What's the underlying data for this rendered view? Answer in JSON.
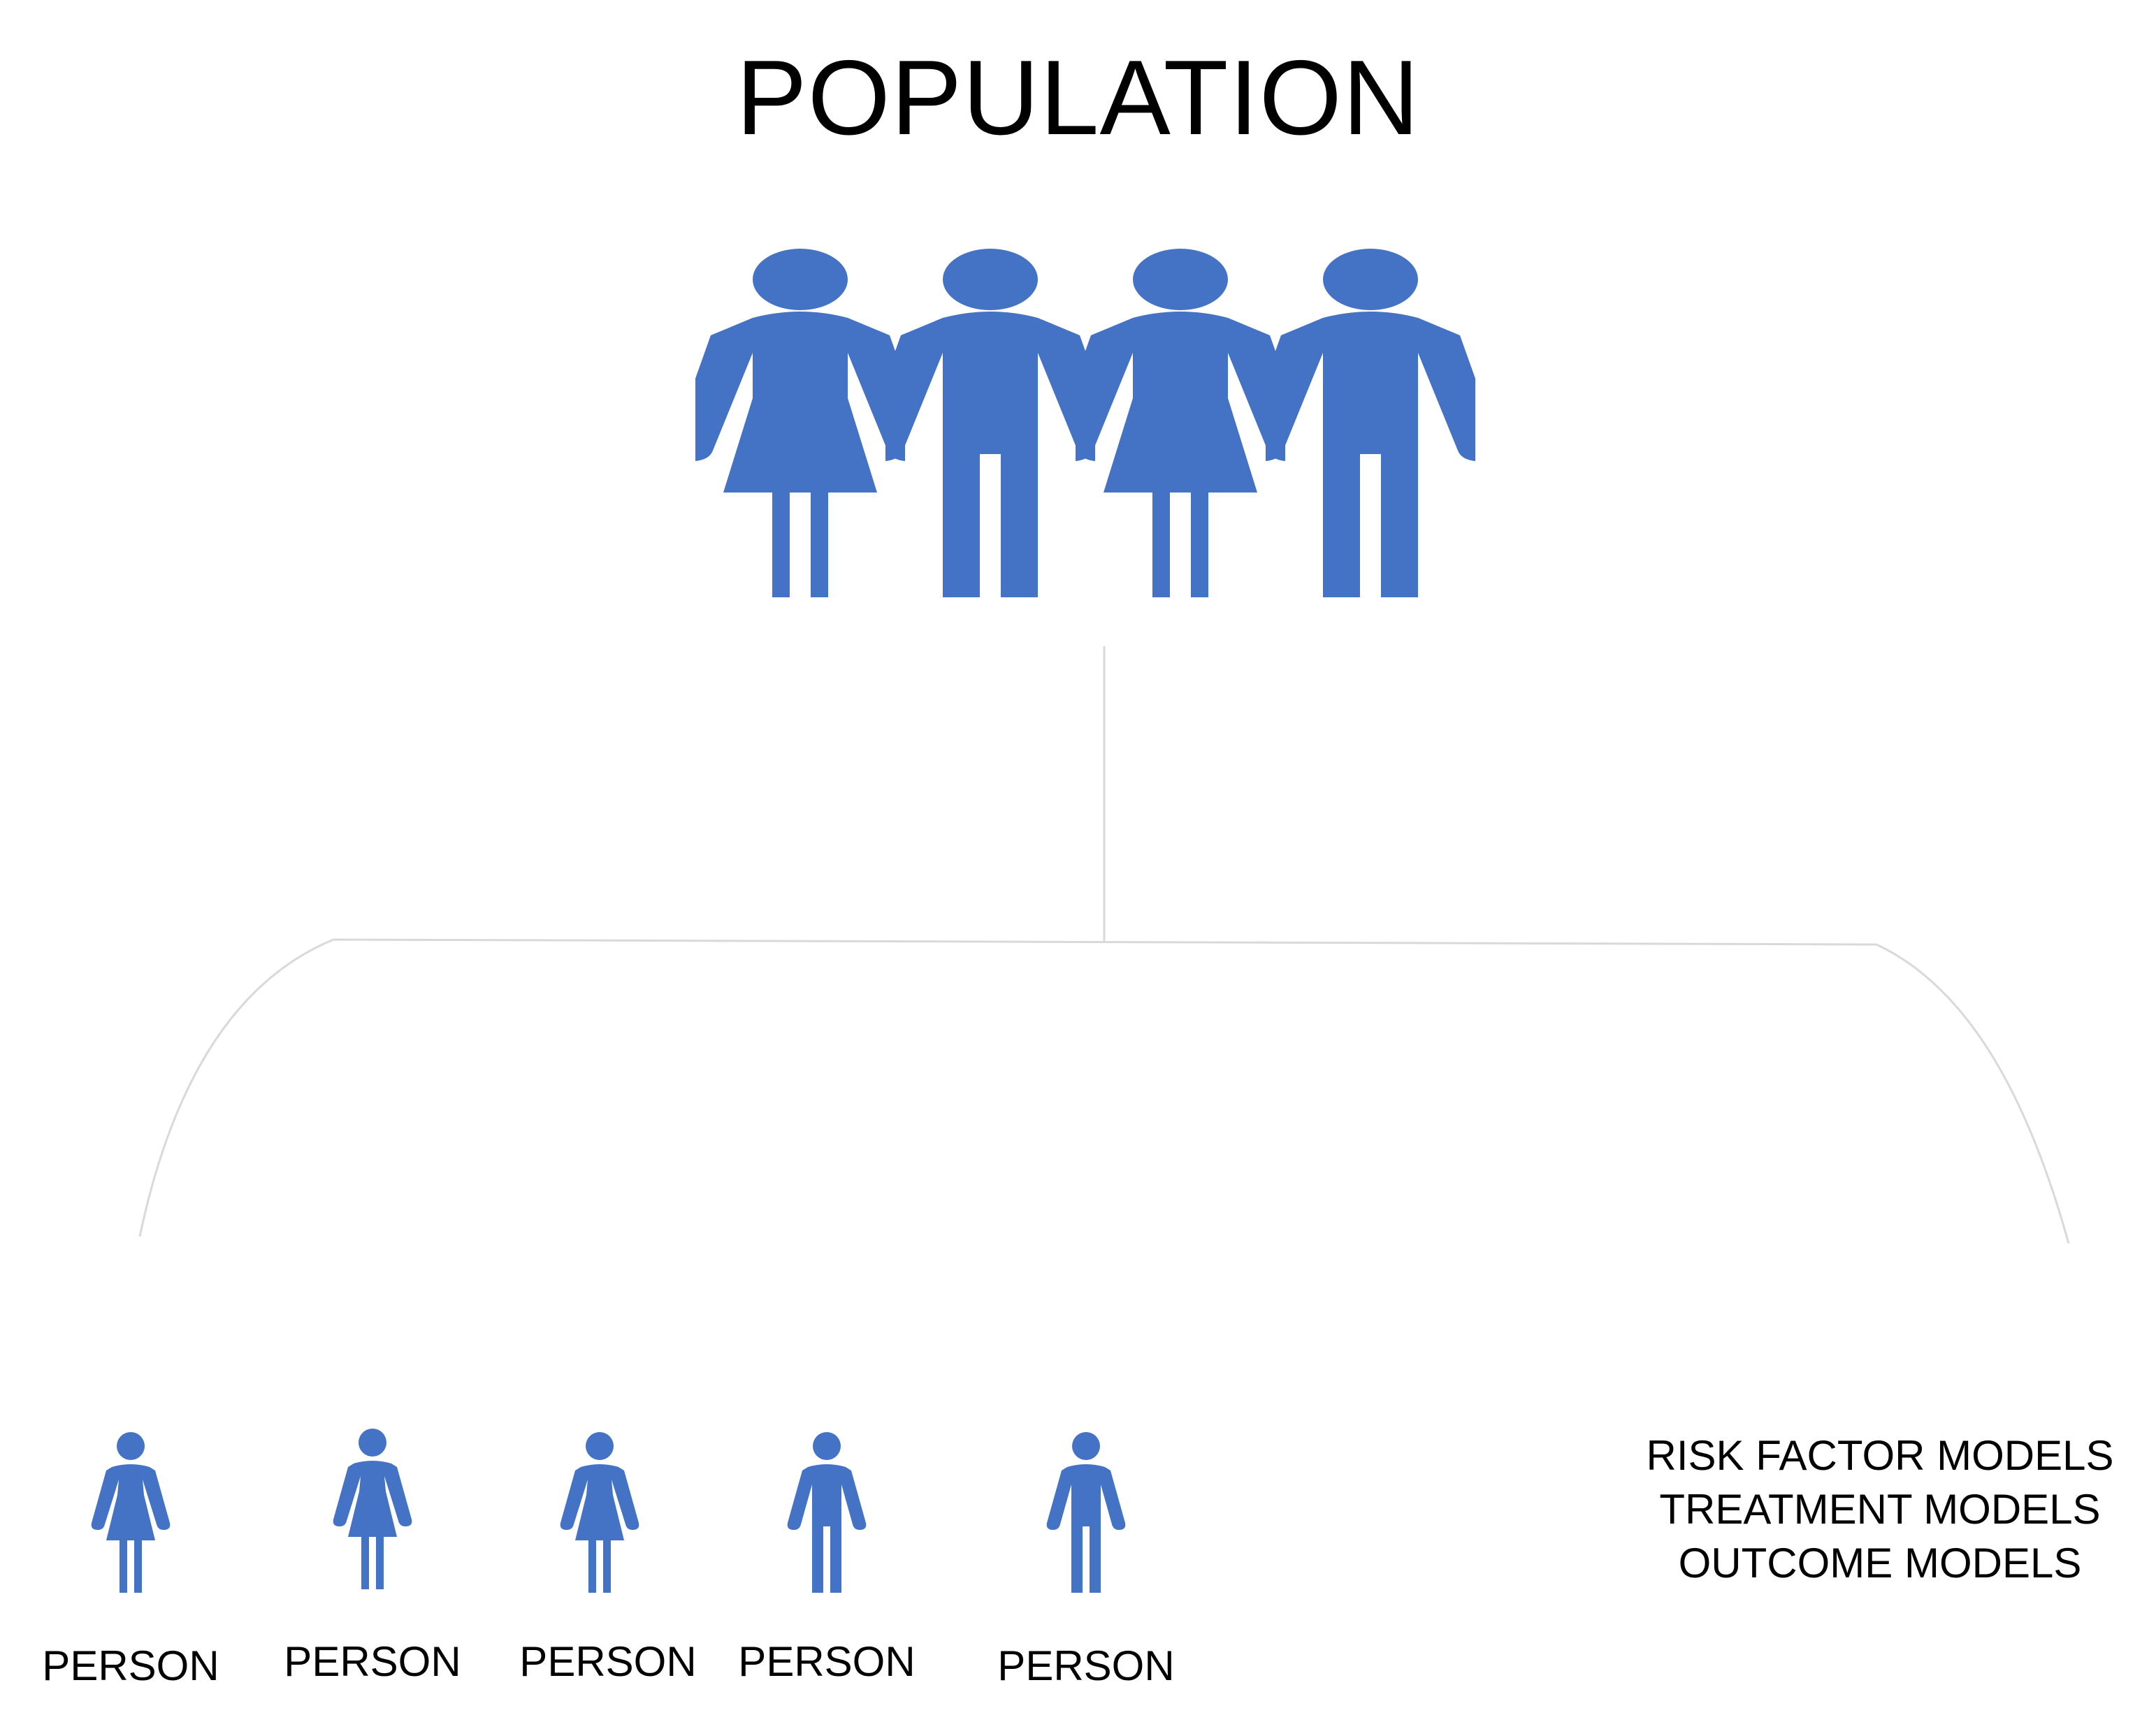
{
  "title": "POPULATION",
  "colors": {
    "figure": "#4472C4",
    "connector": "#D9D9D9",
    "text": "#000000"
  },
  "population_group": {
    "icon": "population-group-icon",
    "members": [
      "female",
      "male",
      "female",
      "male"
    ]
  },
  "persons": [
    {
      "label": "PERSON",
      "gender": "female"
    },
    {
      "label": "PERSON",
      "gender": "female"
    },
    {
      "label": "PERSON",
      "gender": "female"
    },
    {
      "label": "PERSON",
      "gender": "male"
    },
    {
      "label": "PERSON",
      "gender": "male"
    }
  ],
  "models": [
    "RISK FACTOR MODELS",
    "TREATMENT MODELS",
    "OUTCOME MODELS"
  ]
}
